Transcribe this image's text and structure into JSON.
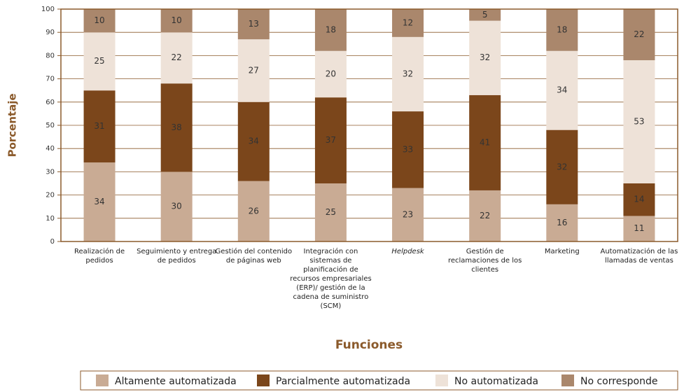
{
  "chart_data": {
    "type": "stacked_bar",
    "y_label": "Porcentaje",
    "x_label": "Funciones",
    "categories": [
      "Realización de\npedidos",
      "Seguimiento y entrega\nde pedidos",
      "Gestión del contenido\nde páginas web",
      "Integración con\nsistemas de\nplanificación de\nrecursos empresariales\n(ERP)/ gestión de la\ncadena de suministro\n(SCM)",
      "Helpdesk",
      "Gestión de\nreclamaciones de los\nclientes",
      "Marketing",
      "Automatización de las\nllamadas de ventas"
    ],
    "series": [
      {
        "name": "Altamente automatizada",
        "color": "#c9ab94",
        "values": [
          34,
          30,
          26,
          25,
          23,
          22,
          16,
          11
        ]
      },
      {
        "name": "Parcialmente automatizada",
        "color": "#7b461b",
        "values": [
          31,
          38,
          34,
          37,
          33,
          41,
          32,
          14
        ]
      },
      {
        "name": "No automatizada",
        "color": "#eee2d8",
        "values": [
          25,
          22,
          27,
          20,
          32,
          32,
          34,
          53
        ]
      },
      {
        "name": "No corresponde",
        "color": "#aa876c",
        "values": [
          10,
          10,
          13,
          18,
          12,
          5,
          18,
          22
        ]
      }
    ],
    "ylim": [
      0,
      100
    ],
    "yticks": [
      0,
      10,
      20,
      30,
      40,
      50,
      60,
      70,
      80,
      90,
      100
    ],
    "grid": true
  }
}
